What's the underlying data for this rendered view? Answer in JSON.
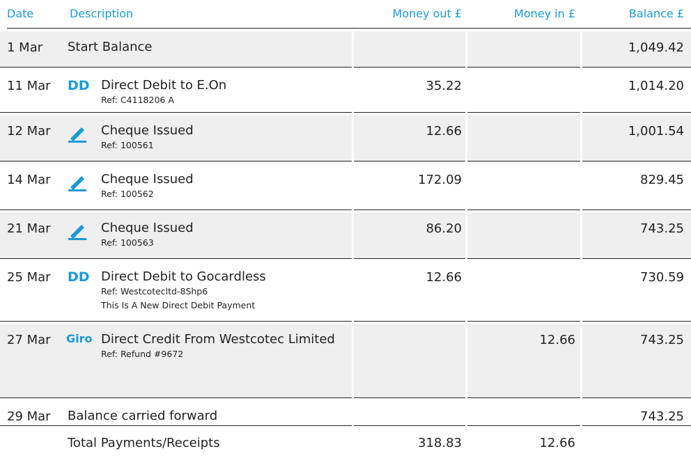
{
  "header": {
    "columns": [
      "Date",
      "Description",
      "Money out £",
      "Money in £",
      "Balance £"
    ]
  },
  "table": {
    "rows": [
      {
        "date": "1 Mar",
        "description": "Start Balance",
        "balance": "1,049.42"
      },
      {
        "date": "11 Mar",
        "icon": "DD",
        "description": "Direct Debit to E.On",
        "refs": [
          "Ref: C4118206 A"
        ],
        "out": "35.22",
        "balance": "1,014.20"
      },
      {
        "date": "12 Mar",
        "icon_type": "cheque",
        "description": "Cheque Issued",
        "refs": [
          "Ref: 100561"
        ],
        "out": "12.66",
        "balance": "1,001.54"
      },
      {
        "date": "14 Mar",
        "icon_type": "cheque",
        "description": "Cheque Issued",
        "refs": [
          "Ref: 100562"
        ],
        "out": "172.09",
        "balance": "829.45"
      },
      {
        "date": "21 Mar",
        "icon_type": "cheque",
        "description": "Cheque Issued",
        "refs": [
          "Ref: 100563"
        ],
        "out": "86.20",
        "balance": "743.25"
      },
      {
        "date": "25 Mar",
        "icon": "DD",
        "description": "Direct Debit to Gocardless",
        "refs": [
          "Ref: Westcotecltd-8Shp6",
          "This Is A New Direct Debit Payment"
        ],
        "out": "12.66",
        "balance": "730.59"
      },
      {
        "date": "27 Mar",
        "icon": "Giro",
        "description": "Direct Credit From Westcotec Limited",
        "refs": [
          "Ref: Refund #9672"
        ],
        "in": "12.66",
        "balance": "743.25"
      },
      {
        "date": "29 Mar",
        "description": "Balance carried forward",
        "balance": "743.25"
      }
    ]
  },
  "totals": {
    "label": "Total Payments/Receipts",
    "out": "318.83",
    "in": "12.66"
  }
}
